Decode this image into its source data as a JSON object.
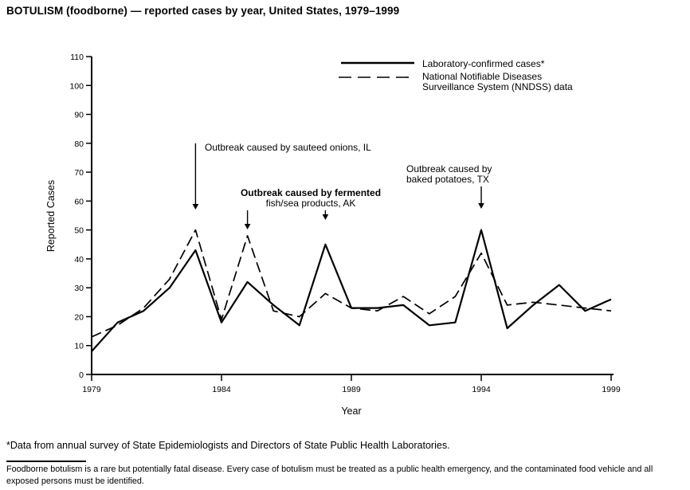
{
  "title": "BOTULISM (foodborne) — reported cases by year, United States, 1979–1999",
  "axes": {
    "y_label": "Reported Cases",
    "x_label": "Year"
  },
  "legend": {
    "series1": "Laboratory-confirmed cases*",
    "series2_line1": "National Notifiable Diseases",
    "series2_line2": "Surveillance System (NNDSS) data"
  },
  "annotations": {
    "onions": {
      "text": "Outbreak caused by sauteed onions, IL"
    },
    "fermented": {
      "line1": "Outbreak caused by fermented",
      "line2": "fish/sea products, AK"
    },
    "potatoes": {
      "line1": "Outbreak caused by",
      "line2": "baked potatoes, TX"
    }
  },
  "footnote": "*Data from annual survey of State Epidemiologists and Directors of State Public Health Laboratories.",
  "summary": "Foodborne botulism is a rare but potentially fatal disease. Every case of botulism must be treated as a public health emergency, and the contaminated food vehicle and all exposed persons must be identified.",
  "chart_data": {
    "type": "line",
    "title": "BOTULISM (foodborne) — reported cases by year, United States, 1979–1999",
    "xlabel": "Year",
    "ylabel": "Reported Cases",
    "ylim": [
      0,
      110
    ],
    "ytick_step": 10,
    "xticks": [
      1979,
      1984,
      1989,
      1994,
      1999
    ],
    "x": [
      1979,
      1980,
      1981,
      1982,
      1983,
      1984,
      1985,
      1986,
      1987,
      1988,
      1989,
      1990,
      1991,
      1992,
      1993,
      1994,
      1995,
      1996,
      1997,
      1998,
      1999
    ],
    "series": [
      {
        "name": "Laboratory-confirmed cases*",
        "style": "solid",
        "values": [
          8,
          18,
          22,
          30,
          43,
          18,
          32,
          24,
          17,
          45,
          23,
          23,
          24,
          17,
          18,
          50,
          16,
          24,
          31,
          22,
          26
        ]
      },
      {
        "name": "National Notifiable Diseases Surveillance System (NNDSS) data",
        "style": "dashed",
        "values": [
          13,
          17,
          23,
          33,
          50,
          19,
          48,
          22,
          20,
          28,
          23,
          22,
          27,
          21,
          27,
          42,
          24,
          25,
          24,
          23,
          22
        ]
      }
    ],
    "annotations": [
      {
        "text": "Outbreak caused by sauteed onions, IL",
        "year": 1983
      },
      {
        "text": "Outbreak caused by fermented fish/sea products, AK",
        "years": [
          1985,
          1988
        ]
      },
      {
        "text": "Outbreak caused by baked potatoes, TX",
        "year": 1994
      }
    ],
    "legend_position": "top-right",
    "grid": false
  }
}
